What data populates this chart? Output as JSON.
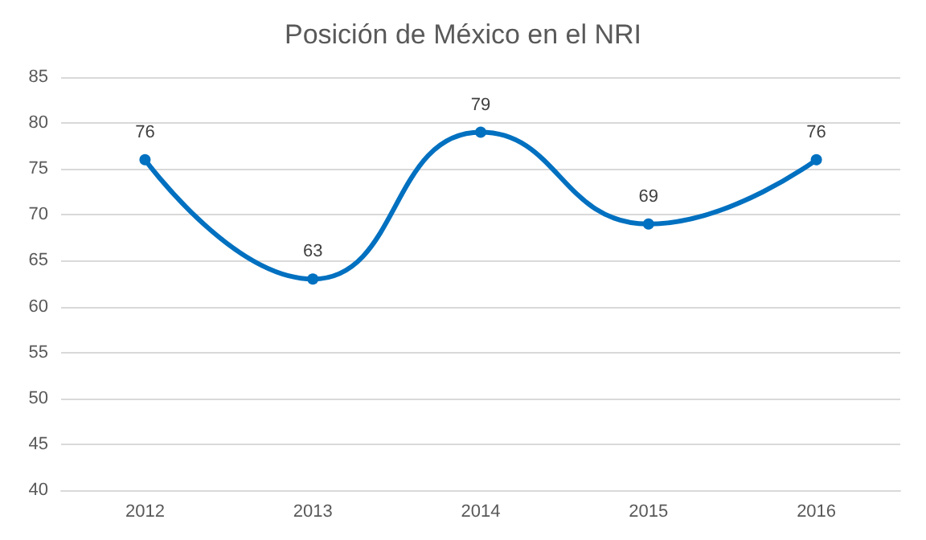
{
  "chart_data": {
    "type": "line",
    "title": "Posición de México en el NRI",
    "categories": [
      "2012",
      "2013",
      "2014",
      "2015",
      "2016"
    ],
    "series": [
      {
        "color": "#0070c0",
        "values": [
          76,
          63,
          79,
          69,
          76
        ]
      }
    ],
    "ylim": [
      40,
      85
    ],
    "yticks": [
      40,
      45,
      50,
      55,
      60,
      65,
      70,
      75,
      80,
      85
    ],
    "grid": "y",
    "marker": "circle",
    "line_style": "solid",
    "data_labels": true
  }
}
